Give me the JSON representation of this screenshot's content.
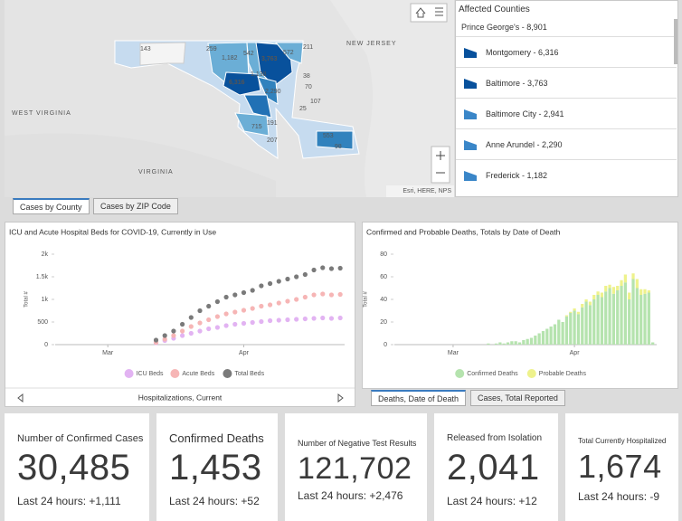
{
  "map": {
    "labels": [
      "143",
      "259",
      "1,182",
      "542",
      "572",
      "211",
      "3,763",
      "1,138",
      "6,316",
      "2,290",
      "715",
      "191",
      "207",
      "553",
      "98",
      "107",
      "70",
      "38",
      "25"
    ],
    "places": [
      "NEW JERSEY",
      "WEST VIRGINIA",
      "VIRGINIA"
    ],
    "attribution": "Esri, HERE, NPS"
  },
  "county_list": {
    "title": "Affected Counties",
    "first": "Prince George's - 8,901",
    "items": [
      "Montgomery - 6,316",
      "Baltimore - 3,763",
      "Baltimore City - 2,941",
      "Anne Arundel - 2,290",
      "Frederick - 1,182"
    ]
  },
  "map_tabs": [
    "Cases by County",
    "Cases by ZIP Code"
  ],
  "chart_data": [
    {
      "type": "scatter",
      "title": "ICU and Acute Hospital Beds for COVID-19, Currently in Use",
      "y_label": "Total #",
      "footer": "Hospitalizations, Current",
      "x": [
        12,
        14,
        16,
        18,
        20,
        22,
        24,
        26,
        28,
        30,
        32,
        34,
        36,
        38,
        40,
        42,
        44,
        46,
        48,
        50,
        52,
        54
      ],
      "xlim": [
        -11,
        55
      ],
      "xticks": [
        {
          "value": 1,
          "label": "Mar"
        },
        {
          "value": 32,
          "label": "Apr"
        }
      ],
      "ylim": [
        0,
        2000
      ],
      "yticks": [
        0,
        500,
        {
          "value": 1000,
          "label": "1k"
        },
        {
          "value": 1500,
          "label": "1.5k"
        },
        {
          "value": 2000,
          "label": "2k"
        }
      ],
      "grid": false,
      "series": [
        {
          "name": "ICU Beds",
          "color": "#e2b3f2",
          "values": [
            40,
            90,
            140,
            200,
            250,
            300,
            350,
            380,
            420,
            450,
            470,
            490,
            510,
            530,
            540,
            550,
            560,
            570,
            580,
            590,
            580,
            590
          ]
        },
        {
          "name": "Acute Beds",
          "color": "#f6b5b5",
          "values": [
            50,
            120,
            200,
            300,
            400,
            480,
            550,
            620,
            680,
            720,
            760,
            800,
            850,
            880,
            920,
            960,
            1000,
            1050,
            1100,
            1120,
            1100,
            1110
          ]
        },
        {
          "name": "Total Beds",
          "color": "#7a7a7a",
          "values": [
            100,
            200,
            300,
            450,
            600,
            750,
            850,
            950,
            1050,
            1100,
            1150,
            1200,
            1300,
            1350,
            1400,
            1450,
            1500,
            1550,
            1650,
            1700,
            1680,
            1690
          ]
        }
      ]
    },
    {
      "type": "bar",
      "title": "Confirmed and Probable Deaths, Totals by Date of Death",
      "y_label": "Total #",
      "x": [
        10,
        11,
        12,
        13,
        14,
        15,
        16,
        17,
        18,
        19,
        20,
        21,
        22,
        23,
        24,
        25,
        26,
        27,
        28,
        29,
        30,
        31,
        32,
        33,
        34,
        35,
        36,
        37,
        38,
        39,
        40,
        41,
        42,
        43,
        44,
        45,
        46,
        47,
        48,
        49,
        50,
        51,
        52
      ],
      "xlim": [
        -14,
        53
      ],
      "xticks": [
        {
          "value": 1,
          "label": "Mar"
        },
        {
          "value": 32,
          "label": "Apr"
        }
      ],
      "ylim": [
        0,
        80
      ],
      "yticks": [
        0,
        20,
        40,
        60,
        80
      ],
      "grid": false,
      "stacked": true,
      "series": [
        {
          "name": "Confirmed Deaths",
          "color": "#b5e3ae",
          "values": [
            1,
            0,
            1,
            2,
            1,
            2,
            3,
            3,
            2,
            4,
            5,
            6,
            8,
            10,
            12,
            14,
            16,
            18,
            22,
            20,
            25,
            28,
            30,
            27,
            33,
            38,
            35,
            40,
            44,
            42,
            47,
            50,
            45,
            48,
            52,
            55,
            40,
            58,
            50,
            44,
            45,
            46,
            2
          ]
        },
        {
          "name": "Probable Deaths",
          "color": "#eef28c",
          "values": [
            0,
            0,
            0,
            0,
            0,
            0,
            0,
            0,
            0,
            0,
            0,
            0,
            0,
            0,
            0,
            0,
            0,
            0,
            0,
            0,
            1,
            1,
            2,
            2,
            3,
            2,
            3,
            4,
            3,
            4,
            5,
            3,
            6,
            4,
            5,
            7,
            6,
            5,
            8,
            5,
            4,
            2,
            0
          ]
        }
      ]
    }
  ],
  "chart_tabs": [
    "Deaths, Date of Death",
    "Cases, Total Reported"
  ],
  "kpis": [
    {
      "title": "Number of Confirmed Cases",
      "value": "30,485",
      "sub": "Last 24 hours: +1,111"
    },
    {
      "title": "Confirmed Deaths",
      "value": "1,453",
      "sub": "Last 24 hours: +52"
    },
    {
      "title": "Number of Negative Test Results",
      "value": "121,702",
      "sub": "Last 24 hours: +2,476"
    },
    {
      "title": "Released from Isolation",
      "value": "2,041",
      "sub": "Last 24 hours: +12"
    },
    {
      "title": "Total Currently Hospitalized",
      "value": "1,674",
      "sub": "Last 24 hours: -9"
    }
  ]
}
